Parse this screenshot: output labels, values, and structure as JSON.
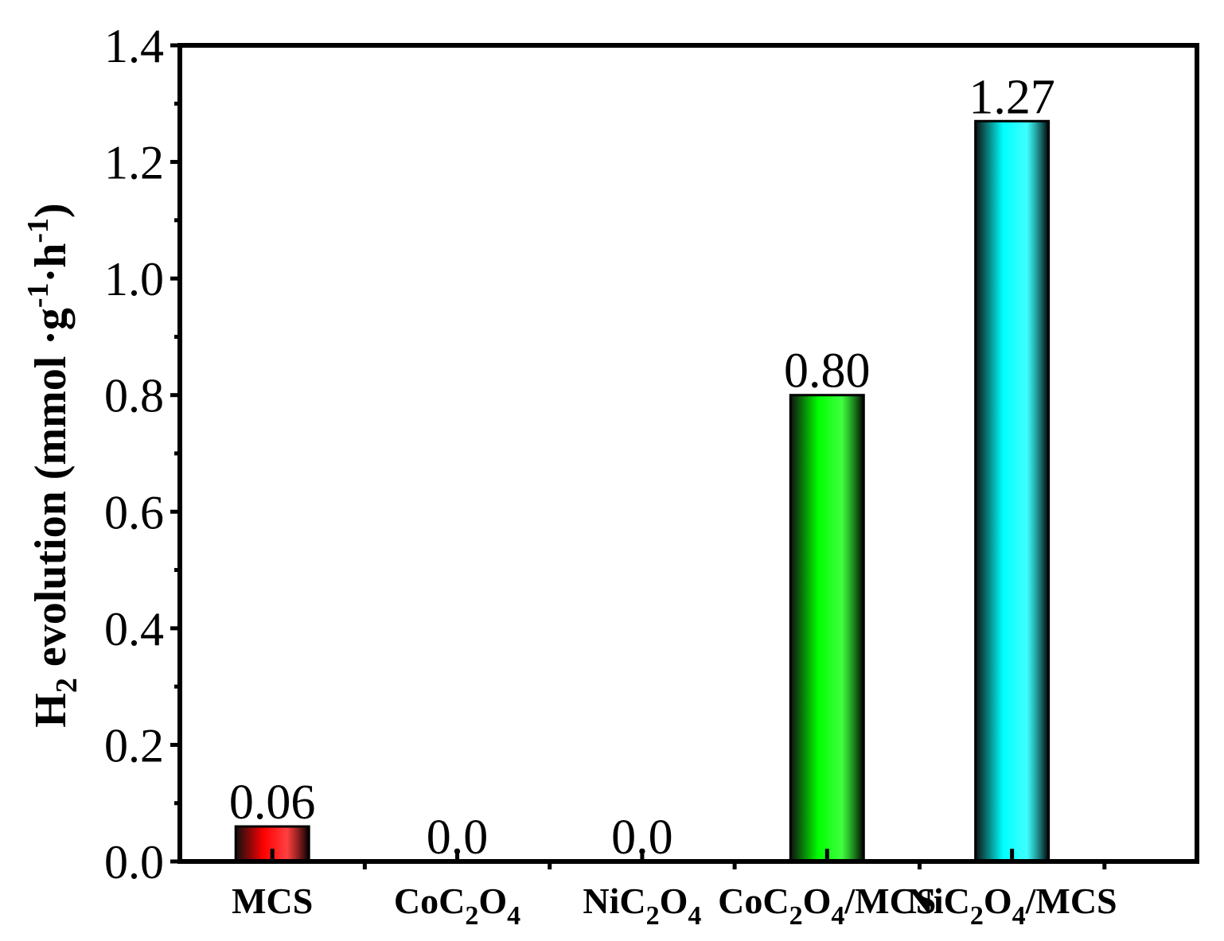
{
  "chart_data": {
    "type": "bar",
    "categories": [
      "MCS",
      "CoC2O4",
      "NiC2O4",
      "CoC2O4/MCS",
      "NiC2O4/MCS"
    ],
    "category_labels": [
      [
        {
          "t": "MCS",
          "sub": false
        }
      ],
      [
        {
          "t": "CoC",
          "sub": false
        },
        {
          "t": "2",
          "sub": true
        },
        {
          "t": "O",
          "sub": false
        },
        {
          "t": "4",
          "sub": true
        }
      ],
      [
        {
          "t": "NiC",
          "sub": false
        },
        {
          "t": "2",
          "sub": true
        },
        {
          "t": "O",
          "sub": false
        },
        {
          "t": "4",
          "sub": true
        }
      ],
      [
        {
          "t": "CoC",
          "sub": false
        },
        {
          "t": "2",
          "sub": true
        },
        {
          "t": "O",
          "sub": false
        },
        {
          "t": "4",
          "sub": true
        },
        {
          "t": "/MCS",
          "sub": false
        }
      ],
      [
        {
          "t": "NiC",
          "sub": false
        },
        {
          "t": "2",
          "sub": true
        },
        {
          "t": "O",
          "sub": false
        },
        {
          "t": "4",
          "sub": true
        },
        {
          "t": "/MCS",
          "sub": false
        }
      ]
    ],
    "values": [
      0.06,
      0.0,
      0.0,
      0.8,
      1.27
    ],
    "data_labels": [
      "0.06",
      "0.0",
      "0.0",
      "0.80",
      "1.27"
    ],
    "bar_colors": [
      "#ff0000",
      null,
      null,
      "#00ff00",
      "#00ffff"
    ],
    "ylim": [
      0,
      1.4
    ],
    "yticks": [
      "0.0",
      "0.2",
      "0.4",
      "0.6",
      "0.8",
      "1.0",
      "1.2",
      "1.4"
    ],
    "ylabel_parts": [
      {
        "t": "H",
        "pos": "base"
      },
      {
        "t": "2",
        "pos": "sub"
      },
      {
        "t": " evolution (mmol ·g",
        "pos": "base"
      },
      {
        "t": "-1",
        "pos": "sup"
      },
      {
        "t": "·h",
        "pos": "base"
      },
      {
        "t": "-1",
        "pos": "sup"
      },
      {
        "t": ")",
        "pos": "base"
      }
    ],
    "grid": false,
    "legend": "none"
  }
}
